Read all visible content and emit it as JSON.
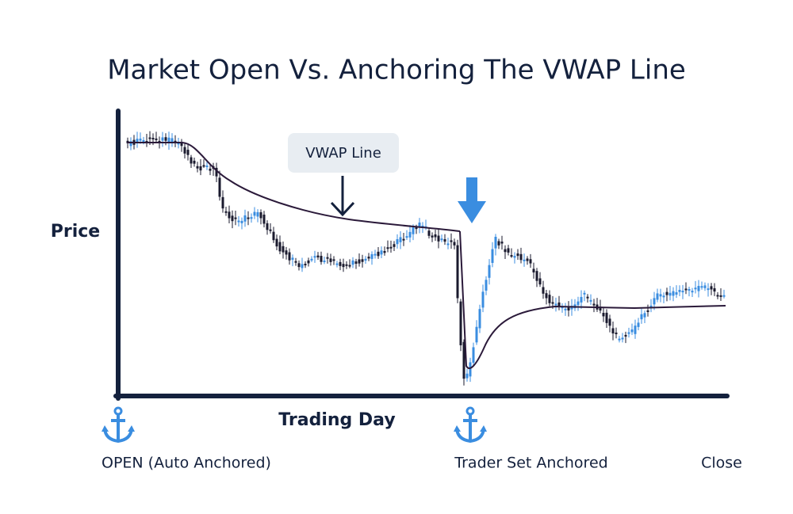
{
  "title": "Market Open Vs. Anchoring The VWAP Line",
  "y_axis_label": "Price",
  "x_axis_label": "Trading Day",
  "callout": "VWAP Line",
  "anchors": [
    {
      "label": "OPEN (Auto Anchored)"
    },
    {
      "label": "Trader Set Anchored"
    }
  ],
  "end_label": "Close"
}
